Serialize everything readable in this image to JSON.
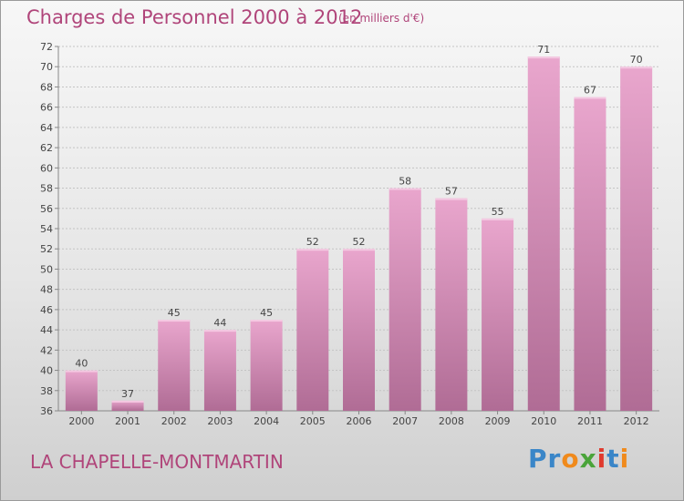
{
  "title": "Charges de Personnel 2000 à 2012",
  "subtitle": "(en milliers d'€)",
  "commune": "LA CHAPELLE-MONTMARTIN",
  "logo": {
    "text": "Proxiti",
    "letters": [
      {
        "ch": "P",
        "color": "#3a86c8"
      },
      {
        "ch": "r",
        "color": "#3a86c8"
      },
      {
        "ch": "o",
        "color": "#f08a1c"
      },
      {
        "ch": "x",
        "color": "#4aa43a"
      },
      {
        "ch": "i",
        "color": "#e03a2e"
      },
      {
        "ch": "t",
        "color": "#3a86c8"
      },
      {
        "ch": "i",
        "color": "#f08a1c"
      }
    ]
  },
  "colors": {
    "accent": "#b0457a",
    "bar_light": "#e9a6cd",
    "bar_dark": "#b06c95"
  },
  "chart_data": {
    "type": "bar",
    "title": "Charges de Personnel 2000 à 2012",
    "subtitle": "(en milliers d'€)",
    "xlabel": "",
    "ylabel": "",
    "categories": [
      "2000",
      "2001",
      "2002",
      "2003",
      "2004",
      "2005",
      "2006",
      "2007",
      "2008",
      "2009",
      "2010",
      "2011",
      "2012"
    ],
    "values": [
      40,
      37,
      45,
      44,
      45,
      52,
      52,
      58,
      57,
      55,
      71,
      67,
      70
    ],
    "ylim": [
      36,
      72
    ],
    "yticks": [
      36,
      38,
      40,
      42,
      44,
      46,
      48,
      50,
      52,
      54,
      56,
      58,
      60,
      62,
      64,
      66,
      68,
      70,
      72
    ],
    "grid": "horizontal-dashed",
    "legend": "none"
  }
}
